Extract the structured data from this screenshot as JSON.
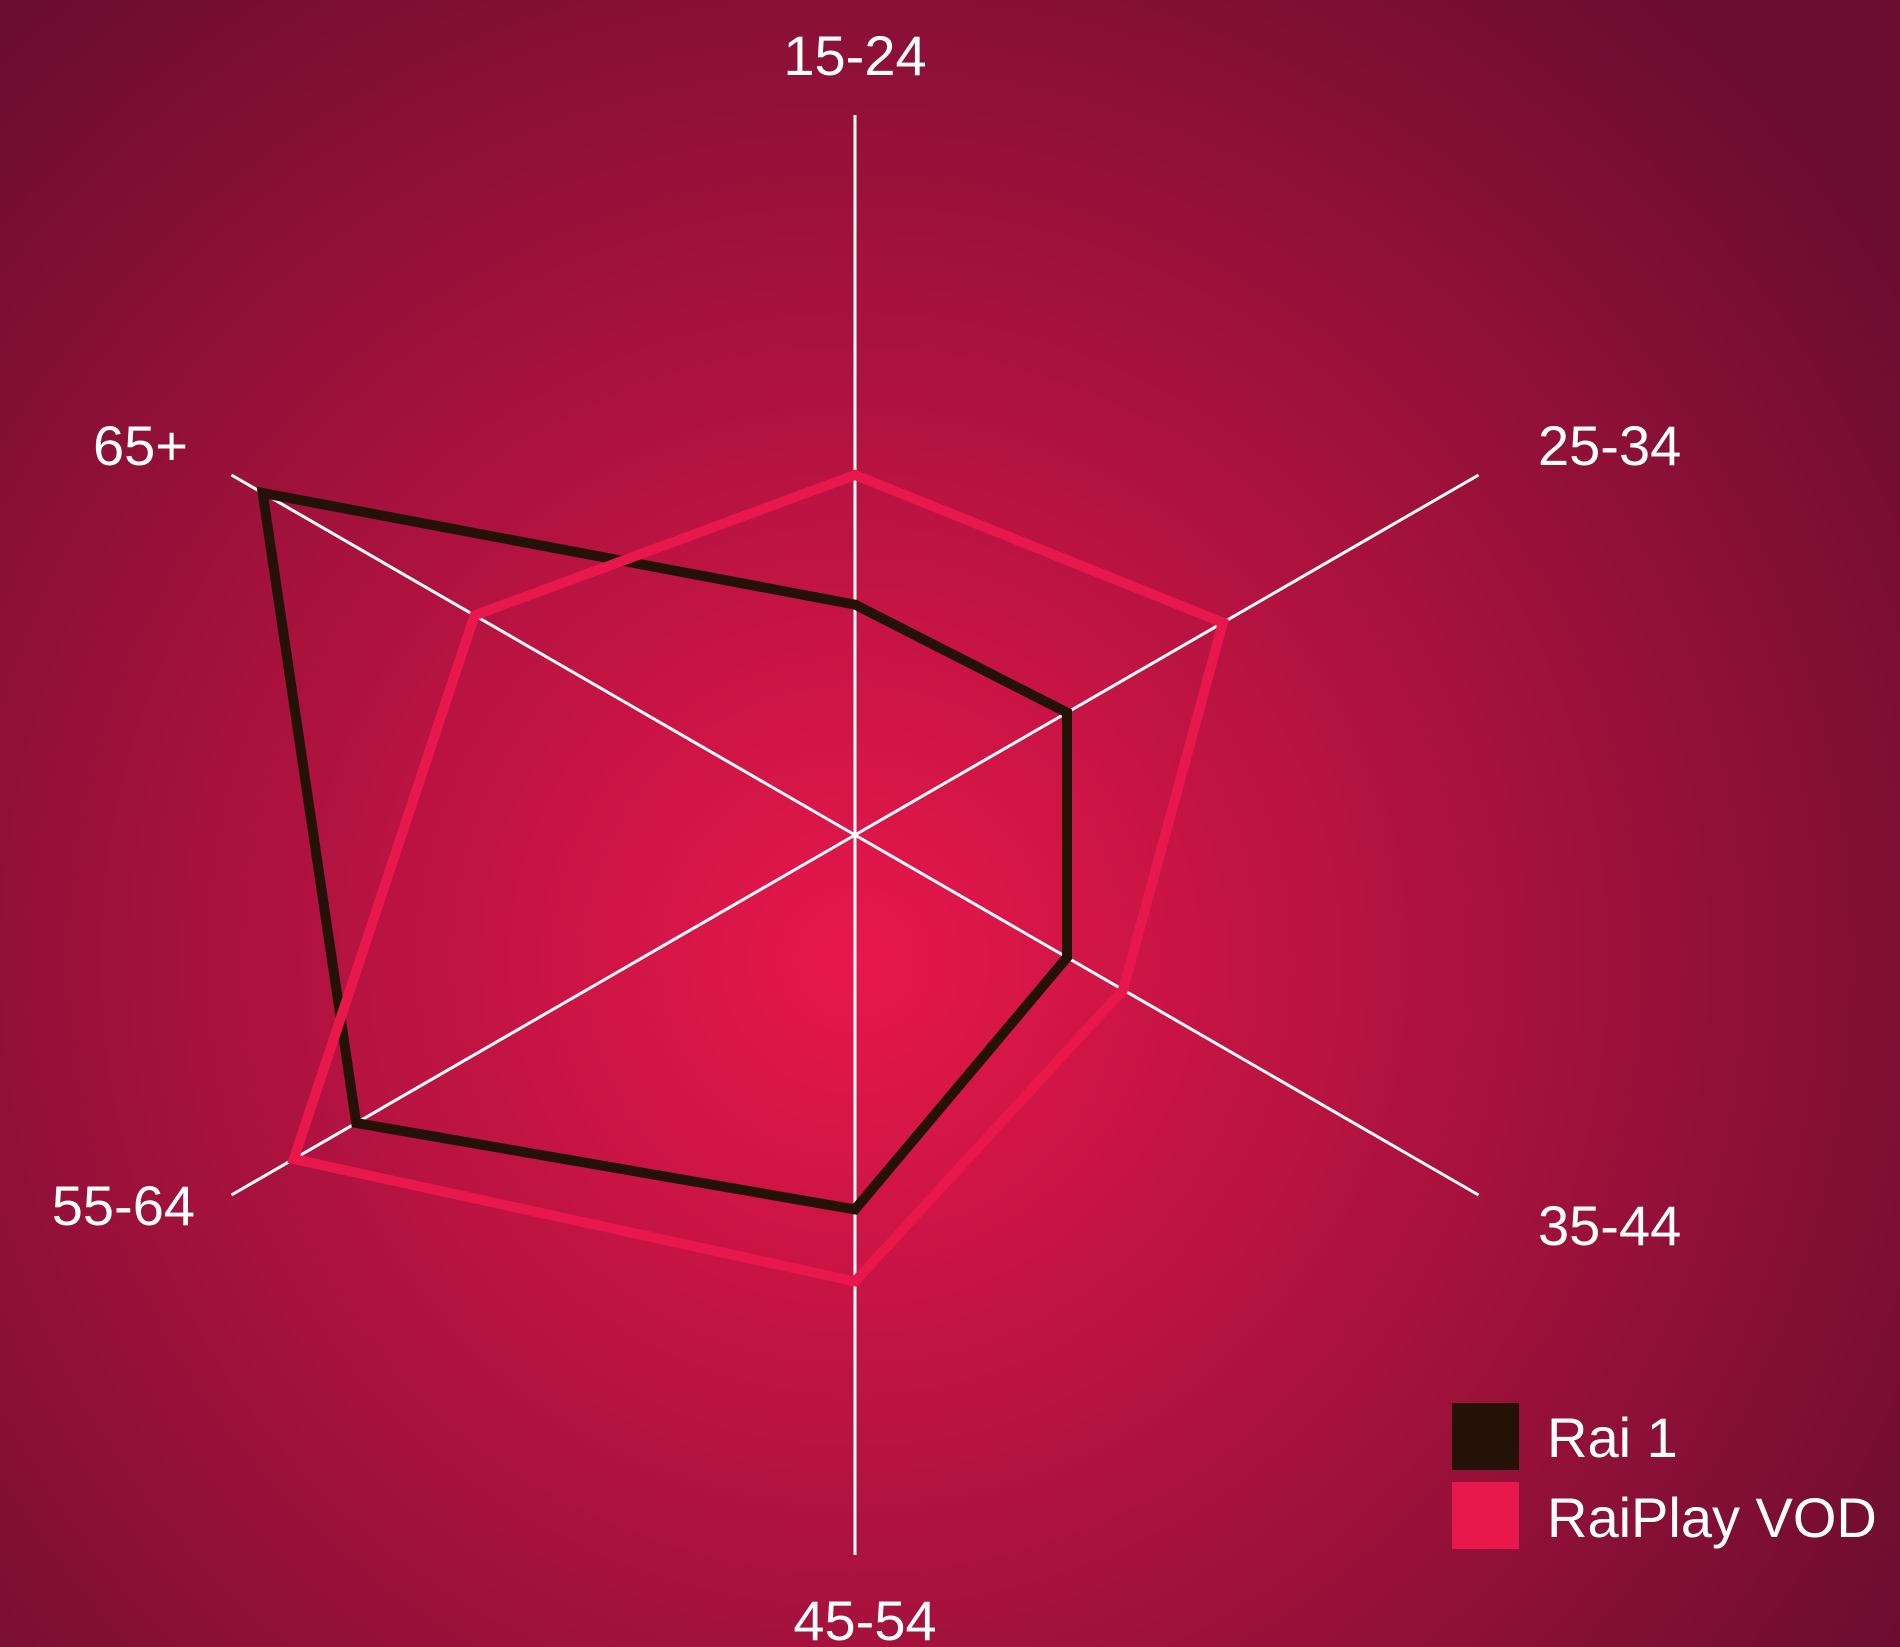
{
  "chart_data": {
    "type": "radar",
    "title": "",
    "categories": [
      "15-24",
      "25-34",
      "35-44",
      "45-54",
      "55-64",
      "65+"
    ],
    "series": [
      {
        "name": "Rai 1",
        "color": "#241209",
        "values": [
          0.32,
          0.34,
          0.34,
          0.52,
          0.8,
          0.95
        ]
      },
      {
        "name": "RaiPlay VOD",
        "color": "#e8174c",
        "values": [
          0.5,
          0.59,
          0.43,
          0.62,
          0.9,
          0.61
        ]
      }
    ],
    "rlim": [
      0,
      1
    ],
    "grid": false,
    "legend": "bottom-right"
  },
  "colors": {
    "background_center": "#e8174c",
    "background_edge": "#6b0d2f",
    "axis": "#ffffff",
    "text": "#ffffff"
  }
}
